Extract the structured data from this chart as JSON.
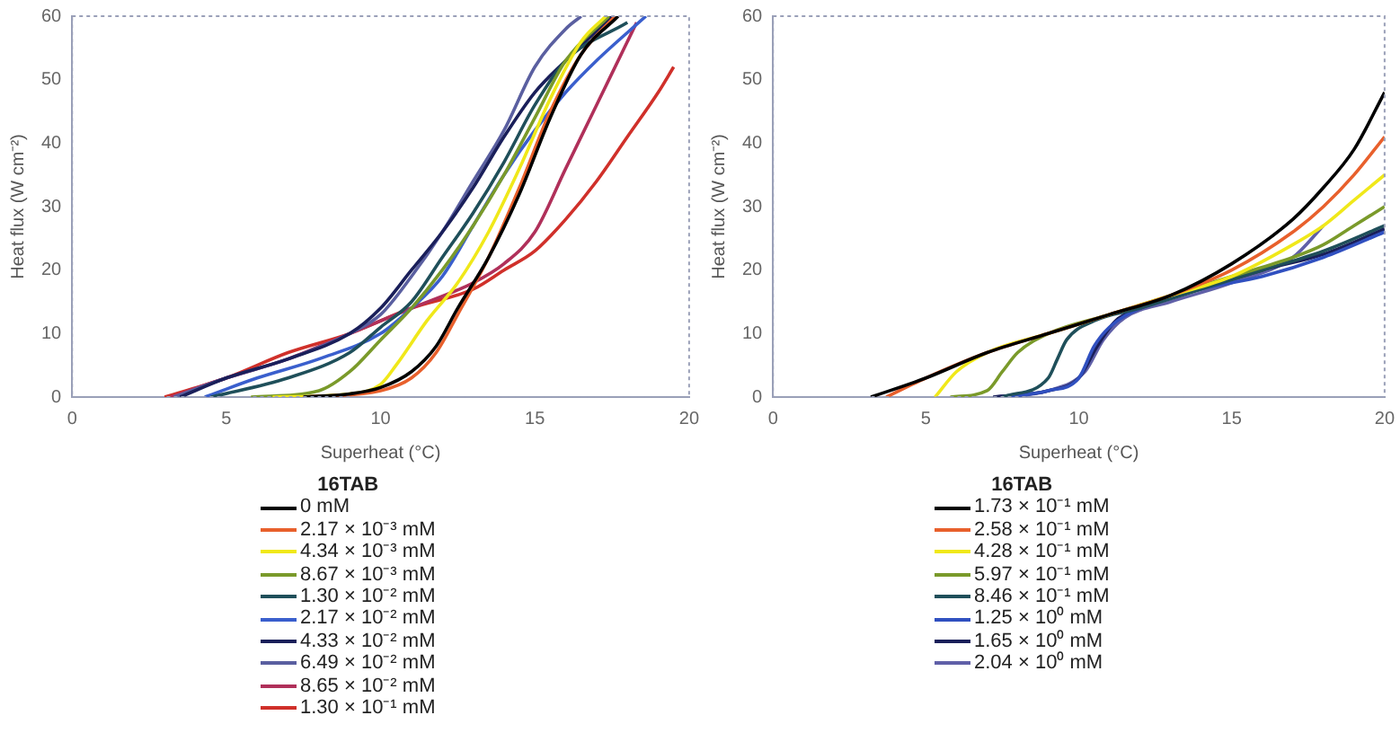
{
  "chart_data": [
    {
      "type": "line",
      "xlabel": "Superheat (°C)",
      "ylabel": "Heat flux (W cm⁻²)",
      "legend_title": "16TAB",
      "legend": "bottom",
      "grid": false,
      "marker": "none",
      "line_style": "solid",
      "xlim": [
        0,
        20
      ],
      "ylim": [
        0,
        60
      ],
      "xticks": [
        0,
        5,
        10,
        15,
        20
      ],
      "yticks": [
        0,
        10,
        20,
        30,
        40,
        50,
        60
      ],
      "series": [
        {
          "name": "0 mM",
          "color": "#000000",
          "x": [
            7.5,
            9,
            10,
            11,
            11.8,
            12.5,
            13.5,
            14.5,
            15.5,
            16.5,
            17.7
          ],
          "values": [
            0,
            0.5,
            1.5,
            4,
            8,
            14,
            22,
            32,
            44,
            54,
            60
          ]
        },
        {
          "name": "2.17 × 10⁻³ mM",
          "color": "#e8602c",
          "x": [
            7.5,
            10,
            11,
            11.8,
            12.5,
            13.5,
            14.5,
            15.5,
            16.5,
            17.6
          ],
          "values": [
            0,
            1,
            3,
            7,
            13,
            22,
            33,
            45,
            54,
            60
          ]
        },
        {
          "name": "4.34 × 10⁻³ mM",
          "color": "#f0e81a",
          "x": [
            6.5,
            9,
            10,
            10.5,
            11.5,
            12.5,
            13.5,
            14.5,
            15.5,
            16.5,
            17.3
          ],
          "values": [
            0,
            0.5,
            2,
            5,
            12,
            18,
            26,
            36,
            47,
            56,
            60
          ]
        },
        {
          "name": "8.67 × 10⁻³ mM",
          "color": "#7a9a2a",
          "x": [
            5.8,
            8,
            9,
            10,
            11,
            12,
            13,
            14,
            15,
            16,
            17.4
          ],
          "values": [
            0,
            1,
            4,
            9,
            14,
            20,
            27,
            35,
            44,
            53,
            60
          ]
        },
        {
          "name": "1.30 × 10⁻² mM",
          "color": "#1f4f5a",
          "x": [
            4.5,
            7,
            9,
            10,
            11,
            12,
            13,
            14,
            15,
            16,
            18
          ],
          "values": [
            0,
            3,
            7,
            11,
            15,
            22,
            29,
            37,
            46,
            53,
            59
          ]
        },
        {
          "name": "2.17 × 10⁻² mM",
          "color": "#3a5fcd",
          "x": [
            4.3,
            6,
            8,
            10,
            11,
            12,
            13,
            14,
            15,
            16,
            17,
            18.6
          ],
          "values": [
            0,
            3,
            6,
            10,
            14,
            19,
            27,
            35,
            42,
            48,
            53,
            60
          ]
        },
        {
          "name": "4.33 × 10⁻² mM",
          "color": "#1a1f5a",
          "x": [
            3.5,
            5,
            7,
            9,
            10,
            11,
            12,
            13,
            14,
            15,
            16,
            17.5
          ],
          "values": [
            0,
            3,
            6,
            10,
            14,
            20,
            26,
            33,
            41,
            48,
            53,
            60
          ]
        },
        {
          "name": "6.49 × 10⁻² mM",
          "color": "#5a5fa0",
          "x": [
            3.3,
            5,
            7,
            9,
            10,
            11,
            12,
            13,
            14,
            15,
            16,
            16.5
          ],
          "values": [
            0,
            3,
            6,
            10,
            13,
            19,
            26,
            34,
            42,
            52,
            58,
            60
          ]
        },
        {
          "name": "8.65 × 10⁻² mM",
          "color": "#b0305a",
          "x": [
            3.2,
            5,
            7,
            9,
            11,
            13,
            14,
            15,
            16,
            17,
            18,
            18.3
          ],
          "values": [
            0,
            3,
            6,
            10,
            14,
            18,
            21,
            26,
            36,
            46,
            56,
            59
          ]
        },
        {
          "name": "1.30 × 10⁻¹ mM",
          "color": "#d0302a",
          "x": [
            3,
            5,
            7,
            9,
            11,
            13,
            14,
            15,
            16,
            17,
            18,
            19,
            19.5
          ],
          "values": [
            0,
            3,
            7,
            10,
            14,
            17,
            20,
            23,
            28,
            34,
            41,
            48,
            52
          ]
        }
      ]
    },
    {
      "type": "line",
      "xlabel": "Superheat (°C)",
      "ylabel": "Heat flux (W cm⁻²)",
      "legend_title": "16TAB",
      "legend": "bottom",
      "grid": false,
      "marker": "none",
      "line_style": "solid",
      "xlim": [
        0,
        20
      ],
      "ylim": [
        0,
        60
      ],
      "xticks": [
        0,
        5,
        10,
        15,
        20
      ],
      "yticks": [
        0,
        10,
        20,
        30,
        40,
        50,
        60
      ],
      "series": [
        {
          "name": "1.73 × 10⁻¹ mM",
          "color": "#000000",
          "x": [
            3.2,
            5,
            7,
            9,
            11,
            13,
            15,
            17,
            18,
            19,
            20
          ],
          "values": [
            0,
            3,
            7,
            10,
            13,
            16,
            21,
            28,
            33,
            39,
            48
          ]
        },
        {
          "name": "2.58 × 10⁻¹ mM",
          "color": "#e8602c",
          "x": [
            3.7,
            5,
            7,
            9,
            11,
            13,
            15,
            17,
            18,
            19,
            20
          ],
          "values": [
            0,
            3,
            7,
            10,
            13,
            16,
            20,
            26,
            30,
            35,
            41
          ]
        },
        {
          "name": "4.28 × 10⁻¹ mM",
          "color": "#f0e81a",
          "x": [
            5.3,
            6,
            7,
            9,
            11,
            13,
            15,
            17,
            18,
            19,
            20
          ],
          "values": [
            0,
            4,
            7,
            10,
            13,
            16,
            19,
            24,
            27,
            31,
            35
          ]
        },
        {
          "name": "5.97 × 10⁻¹ mM",
          "color": "#7a9a2a",
          "x": [
            5.8,
            7,
            7.5,
            8,
            9,
            11,
            13,
            15,
            17,
            18,
            19,
            20
          ],
          "values": [
            0,
            1,
            4,
            7,
            10,
            13,
            16,
            19,
            22,
            24,
            27,
            30
          ]
        },
        {
          "name": "8.46 × 10⁻¹ mM",
          "color": "#1f4f5a",
          "x": [
            7.5,
            9,
            9.3,
            9.6,
            10.5,
            12,
            14,
            16,
            18,
            20
          ],
          "values": [
            0,
            3,
            6,
            9,
            12,
            14,
            17,
            20,
            23,
            27
          ]
        },
        {
          "name": "1.25 × 10⁰ mM",
          "color": "#3050c0",
          "x": [
            7.5,
            9,
            10,
            10.5,
            11,
            12,
            14,
            16,
            18,
            20
          ],
          "values": [
            0,
            1,
            3,
            8,
            11,
            14,
            17,
            19,
            22,
            26
          ]
        },
        {
          "name": "1.65 × 10⁰ mM",
          "color": "#1a1f5a",
          "x": [
            7.2,
            9,
            10,
            10.6,
            11.2,
            12,
            14,
            16,
            18,
            20
          ],
          "values": [
            0,
            1,
            3,
            8,
            12,
            14,
            17,
            20,
            22.5,
            26.5
          ]
        },
        {
          "name": "2.04 × 10⁰ mM",
          "color": "#6060a8",
          "x": [
            7.3,
            9,
            10.2,
            10.8,
            11.5,
            13,
            15,
            17,
            18
          ],
          "values": [
            0,
            1,
            4,
            9,
            12.5,
            15,
            18,
            22,
            27
          ]
        }
      ]
    }
  ]
}
